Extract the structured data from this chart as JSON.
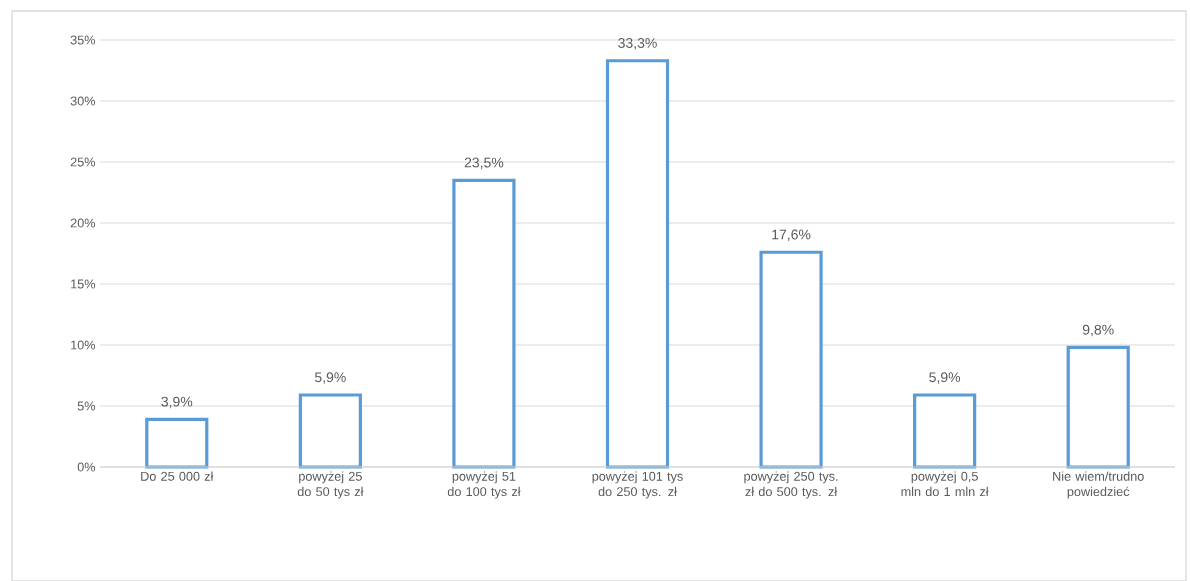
{
  "chart_data": {
    "type": "bar",
    "categories": [
      "Do 25 000 zł",
      "powyżej 25 do 50 tys zł",
      "powyżej 51 do 100 tys zł",
      "powyżej 101 tys do 250 tys. zł",
      "powyżej 250 tys. zł do 500 tys. zł",
      "powyżej 0,5 mln do 1 mln zł",
      "Nie wiem/trudno powiedzieć"
    ],
    "values": [
      3.9,
      5.9,
      23.5,
      33.3,
      17.6,
      5.9,
      9.8
    ],
    "value_labels": [
      "3,9%",
      "5,9%",
      "23,5%",
      "33,3%",
      "17,6%",
      "5,9%",
      "9,8%"
    ],
    "color": "#5b9bd5",
    "ylim": [
      0,
      35
    ],
    "yticks": [
      {
        "value": 0,
        "label": "0%"
      },
      {
        "value": 5,
        "label": "5%"
      },
      {
        "value": 10,
        "label": "10%"
      },
      {
        "value": 15,
        "label": "15%"
      },
      {
        "value": 20,
        "label": "20%"
      },
      {
        "value": 25,
        "label": "25%"
      },
      {
        "value": 30,
        "label": "30%"
      },
      {
        "value": 35,
        "label": "35%"
      }
    ],
    "grid": "y"
  }
}
